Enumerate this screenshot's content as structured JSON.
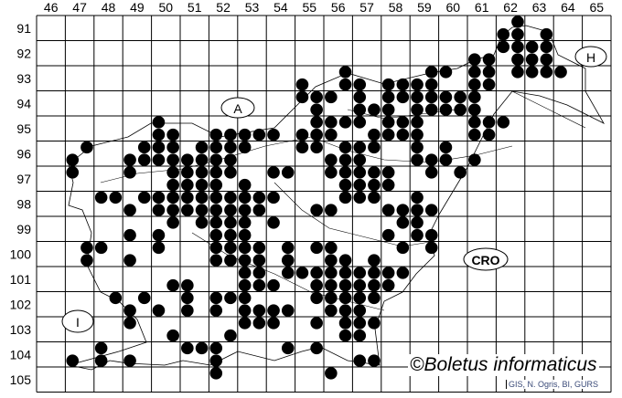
{
  "map": {
    "column_labels": [
      "46",
      "47",
      "48",
      "49",
      "50",
      "51",
      "52",
      "53",
      "54",
      "55",
      "56",
      "57",
      "58",
      "59",
      "60",
      "61",
      "62",
      "63",
      "64",
      "65"
    ],
    "row_labels": [
      "91",
      "92",
      "93",
      "94",
      "95",
      "96",
      "97",
      "98",
      "99",
      "100",
      "101",
      "102",
      "103",
      "104",
      "105"
    ],
    "region_labels": [
      {
        "text": "A"
      },
      {
        "text": "H"
      },
      {
        "text": "CRO"
      },
      {
        "text": "I"
      }
    ],
    "copyright": "©Boletus informaticus",
    "credit": "GIS, N. Ogris, BI, GURS",
    "dot_color": "#000000",
    "occurrences": [
      {
        "y": 90.75,
        "x": [
          62.25
        ]
      },
      {
        "y": 91.25,
        "x": [
          61.75,
          62.25,
          63.25
        ]
      },
      {
        "y": 91.75,
        "x": [
          61.75,
          62.25,
          62.75,
          63.25
        ]
      },
      {
        "y": 92.25,
        "x": [
          60.75,
          61.25,
          62.25,
          62.75,
          63.25
        ]
      },
      {
        "y": 92.75,
        "x": [
          56.25,
          59.25,
          59.75,
          60.75,
          61.25,
          62.25,
          62.75,
          63.25,
          63.75
        ]
      },
      {
        "y": 93.25,
        "x": [
          54.75,
          56.25,
          56.75,
          57.75,
          58.25,
          58.75,
          59.25,
          60.75,
          61.25
        ]
      },
      {
        "y": 93.75,
        "x": [
          54.75,
          55.25,
          55.75,
          56.75,
          57.75,
          58.25,
          58.75,
          59.25,
          59.75,
          60.25,
          60.75
        ]
      },
      {
        "y": 94.25,
        "x": [
          55.25,
          56.75,
          57.25,
          57.75,
          58.75,
          59.25,
          59.75,
          60.25,
          60.75
        ]
      },
      {
        "y": 94.75,
        "x": [
          49.75,
          55.25,
          55.75,
          56.25,
          56.75,
          57.75,
          58.25,
          58.75,
          60.75,
          61.25,
          61.75
        ]
      },
      {
        "y": 95.25,
        "x": [
          49.75,
          50.25,
          51.75,
          52.25,
          52.75,
          53.25,
          53.75,
          54.75,
          55.25,
          55.75,
          57.25,
          57.75,
          58.25,
          58.75,
          60.75,
          61.25
        ]
      },
      {
        "y": 95.75,
        "x": [
          47.25,
          49.25,
          49.75,
          50.25,
          51.25,
          51.75,
          52.25,
          52.75,
          54.75,
          55.25,
          56.25,
          56.75,
          57.25,
          58.75,
          59.75
        ]
      },
      {
        "y": 96.25,
        "x": [
          46.75,
          48.75,
          49.25,
          49.75,
          50.25,
          50.75,
          51.25,
          51.75,
          52.25,
          55.75,
          56.25,
          56.75,
          58.75,
          59.25,
          59.75,
          60.75
        ]
      },
      {
        "y": 96.75,
        "x": [
          46.75,
          48.75,
          50.25,
          50.75,
          51.25,
          51.75,
          52.25,
          53.75,
          54.25,
          55.75,
          56.25,
          56.75,
          57.25,
          57.75,
          59.25,
          60.25
        ]
      },
      {
        "y": 97.25,
        "x": [
          50.25,
          50.75,
          51.25,
          51.75,
          52.75,
          56.25,
          56.75,
          57.25,
          57.75
        ]
      },
      {
        "y": 97.75,
        "x": [
          47.75,
          48.25,
          49.25,
          49.75,
          50.25,
          50.75,
          51.25,
          51.75,
          52.25,
          52.75,
          53.25,
          53.75,
          56.25,
          56.75,
          57.25,
          58.75
        ]
      },
      {
        "y": 98.25,
        "x": [
          48.75,
          49.75,
          50.25,
          50.75,
          51.25,
          51.75,
          52.25,
          52.75,
          53.25,
          55.25,
          55.75,
          57.75,
          58.25,
          58.75,
          59.25
        ]
      },
      {
        "y": 98.75,
        "x": [
          50.25,
          51.25,
          51.75,
          52.25,
          52.75,
          53.75,
          58.25,
          58.75
        ]
      },
      {
        "y": 99.25,
        "x": [
          48.75,
          49.75,
          51.75,
          52.25,
          52.75,
          57.75,
          58.75,
          59.25
        ]
      },
      {
        "y": 99.75,
        "x": [
          47.25,
          47.75,
          49.75,
          51.75,
          52.25,
          52.75,
          53.25,
          54.25,
          55.25,
          55.75,
          58.25,
          59.25
        ]
      },
      {
        "y": 100.25,
        "x": [
          47.25,
          48.75,
          51.75,
          52.25,
          52.75,
          53.25,
          54.25,
          55.75,
          56.25,
          57.25
        ]
      },
      {
        "y": 100.75,
        "x": [
          52.75,
          53.25,
          54.25,
          54.75,
          55.25,
          55.75,
          56.25,
          56.75,
          57.25,
          57.75,
          58.25
        ]
      },
      {
        "y": 101.25,
        "x": [
          50.25,
          50.75,
          52.75,
          53.25,
          53.75,
          55.25,
          55.75,
          56.25,
          56.75,
          57.25,
          57.75
        ]
      },
      {
        "y": 101.75,
        "x": [
          48.25,
          49.25,
          50.75,
          51.75,
          52.25,
          52.75,
          55.25,
          55.75,
          56.25,
          56.75,
          57.25
        ]
      },
      {
        "y": 102.25,
        "x": [
          48.75,
          49.75,
          50.75,
          51.75,
          52.75,
          53.25,
          53.75,
          54.25,
          55.75,
          56.25,
          56.75
        ]
      },
      {
        "y": 102.75,
        "x": [
          48.75,
          52.75,
          53.25,
          53.75,
          55.25,
          56.25,
          56.75,
          57.25
        ]
      },
      {
        "y": 103.25,
        "x": [
          50.25,
          52.25,
          56.25,
          56.75
        ]
      },
      {
        "y": 103.75,
        "x": [
          47.75,
          50.75,
          51.25,
          51.75,
          54.25,
          55.25
        ]
      },
      {
        "y": 104.25,
        "x": [
          46.75,
          47.75,
          48.75,
          51.75,
          56.75,
          57.25
        ]
      },
      {
        "y": 104.75,
        "x": [
          51.75,
          55.75
        ]
      }
    ]
  }
}
